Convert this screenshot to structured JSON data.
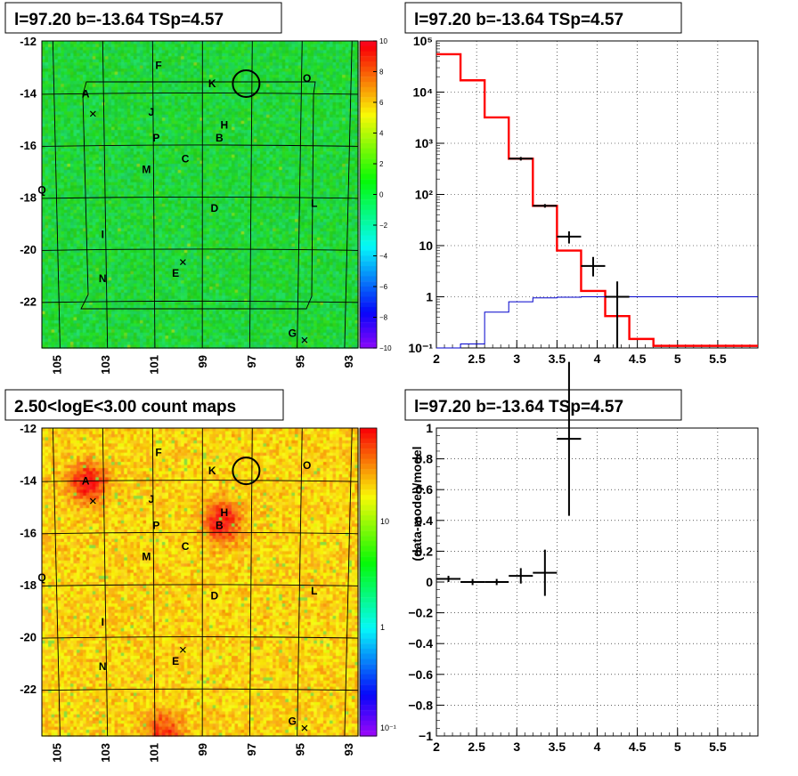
{
  "panels": {
    "tl_title": "l=97.20 b=-13.64 TSp=4.57",
    "tr_title": "l=97.20 b=-13.64 TSp=4.57",
    "bl_title": "2.50<logE<3.00 count maps",
    "br_title": "l=97.20 b=-13.64 TSp=4.57"
  },
  "sky": {
    "lat_ticks": [
      "-12",
      "-14",
      "-16",
      "-18",
      "-20",
      "-22"
    ],
    "lat_values": [
      -12,
      -14,
      -16,
      -18,
      -20,
      -22
    ],
    "lon_ticks": [
      "105",
      "103",
      "101",
      "99",
      "97",
      "95",
      "93"
    ],
    "lon_values": [
      105,
      103,
      101,
      99,
      97,
      95,
      93
    ],
    "lon_range": [
      105.6,
      92.6
    ],
    "lat_range": [
      -12,
      -23.8
    ],
    "residual_colorbar": {
      "ticks": [
        "10",
        "8",
        "6",
        "4",
        "2",
        "0",
        "−2",
        "−4",
        "−6",
        "−8",
        "−10"
      ],
      "min": -10,
      "max": 10
    },
    "count_colorbar": {
      "ticks": [
        "10",
        "1"
      ],
      "minor_label": "10⁻¹"
    },
    "sources": [
      {
        "name": "A",
        "l": 103.8,
        "b": -14.0
      },
      {
        "name": "F",
        "l": 100.8,
        "b": -12.9
      },
      {
        "name": "K",
        "l": 98.6,
        "b": -13.6
      },
      {
        "name": "O",
        "l": 94.7,
        "b": -13.4
      },
      {
        "name": "J",
        "l": 101.1,
        "b": -14.7
      },
      {
        "name": "H",
        "l": 98.1,
        "b": -15.2
      },
      {
        "name": "P",
        "l": 100.9,
        "b": -15.7
      },
      {
        "name": "B",
        "l": 98.3,
        "b": -15.7
      },
      {
        "name": "C",
        "l": 99.7,
        "b": -16.5
      },
      {
        "name": "M",
        "l": 101.3,
        "b": -16.9
      },
      {
        "name": "Q",
        "l": 105.6,
        "b": -17.7
      },
      {
        "name": "L",
        "l": 94.4,
        "b": -18.2
      },
      {
        "name": "D",
        "l": 98.5,
        "b": -18.4
      },
      {
        "name": "I",
        "l": 103.1,
        "b": -19.4
      },
      {
        "name": "E",
        "l": 100.1,
        "b": -20.9
      },
      {
        "name": "N",
        "l": 103.1,
        "b": -21.1
      },
      {
        "name": "G",
        "l": 95.3,
        "b": -23.2
      }
    ],
    "crosses": [
      {
        "l": 103.5,
        "b": -14.8
      },
      {
        "l": 99.8,
        "b": -20.5
      },
      {
        "l": 94.8,
        "b": -23.5
      }
    ],
    "circle": {
      "l": 97.2,
      "b": -13.64
    },
    "hotspots": [
      {
        "l": 103.7,
        "b": -14.1,
        "amp": 1.0
      },
      {
        "l": 98.2,
        "b": -15.6,
        "amp": 1.0
      },
      {
        "l": 100.6,
        "b": -23.7,
        "amp": 0.8
      }
    ]
  },
  "chart_data": [
    {
      "type": "line",
      "title": "l=97.20 b=-13.64 TSp=4.57",
      "xlim": [
        2,
        6
      ],
      "ylim": [
        0.1,
        100000
      ],
      "yscale": "log",
      "x_ticks": [
        "2",
        "2.5",
        "3",
        "3.5",
        "4",
        "4.5",
        "5",
        "5.5"
      ],
      "y_tick_labels": [
        "10⁵",
        "10⁴",
        "10³",
        "10²",
        "10",
        "1",
        "10⁻¹"
      ],
      "series": [
        {
          "style": "red-step",
          "bin_edges": [
            2,
            2.3,
            2.6,
            2.9,
            3.2,
            3.5,
            3.8,
            4.1,
            4.4,
            4.7,
            6
          ],
          "values": [
            55000,
            17000,
            3200,
            500,
            60,
            8,
            1.3,
            0.42,
            0.15,
            0.11
          ]
        },
        {
          "style": "blue-step",
          "bin_edges": [
            2,
            2.3,
            2.6,
            2.9,
            3.2,
            3.5,
            3.8,
            4.1,
            4.4,
            4.7,
            6
          ],
          "values": [
            0.1,
            0.12,
            0.5,
            0.8,
            0.95,
            0.98,
            1,
            1,
            1,
            1
          ]
        },
        {
          "style": "data-points",
          "points": [
            {
              "x": 3.05,
              "y": 500,
              "xerr": 0.15
            },
            {
              "x": 3.35,
              "y": 60,
              "xerr": 0.15
            },
            {
              "x": 3.65,
              "y": 15,
              "xerr": 0.15,
              "ylo": 11,
              "yhi": 19
            },
            {
              "x": 3.95,
              "y": 4,
              "xerr": 0.15,
              "ylo": 2.5,
              "yhi": 6
            },
            {
              "x": 4.25,
              "y": 1,
              "xerr": 0.15,
              "ylo": 0.1,
              "yhi": 2
            }
          ]
        }
      ]
    },
    {
      "type": "scatter",
      "title": "l=97.20 b=-13.64 TSp=4.57",
      "ylabel": "(data-model)/model",
      "xlim": [
        2,
        6
      ],
      "ylim": [
        -1,
        1
      ],
      "x_ticks": [
        "2",
        "2.5",
        "3",
        "3.5",
        "4",
        "4.5",
        "5",
        "5.5"
      ],
      "y_ticks": [
        "1",
        "0.8",
        "0.6",
        "0.4",
        "0.2",
        "0",
        "−0.2",
        "−0.4",
        "−0.6",
        "−0.8",
        "−1"
      ],
      "points": [
        {
          "x": 2.15,
          "y": 0.02,
          "xerr": 0.15,
          "yerr": 0.02
        },
        {
          "x": 2.45,
          "y": 0.0,
          "xerr": 0.15,
          "yerr": 0.02
        },
        {
          "x": 2.75,
          "y": 0.0,
          "xerr": 0.15,
          "yerr": 0.02
        },
        {
          "x": 3.05,
          "y": 0.04,
          "xerr": 0.15,
          "yerr": 0.05
        },
        {
          "x": 3.35,
          "y": 0.06,
          "xerr": 0.15,
          "yerr": 0.15
        },
        {
          "x": 3.65,
          "y": 0.93,
          "xerr": 0.15,
          "yerr": 0.5
        }
      ]
    }
  ]
}
